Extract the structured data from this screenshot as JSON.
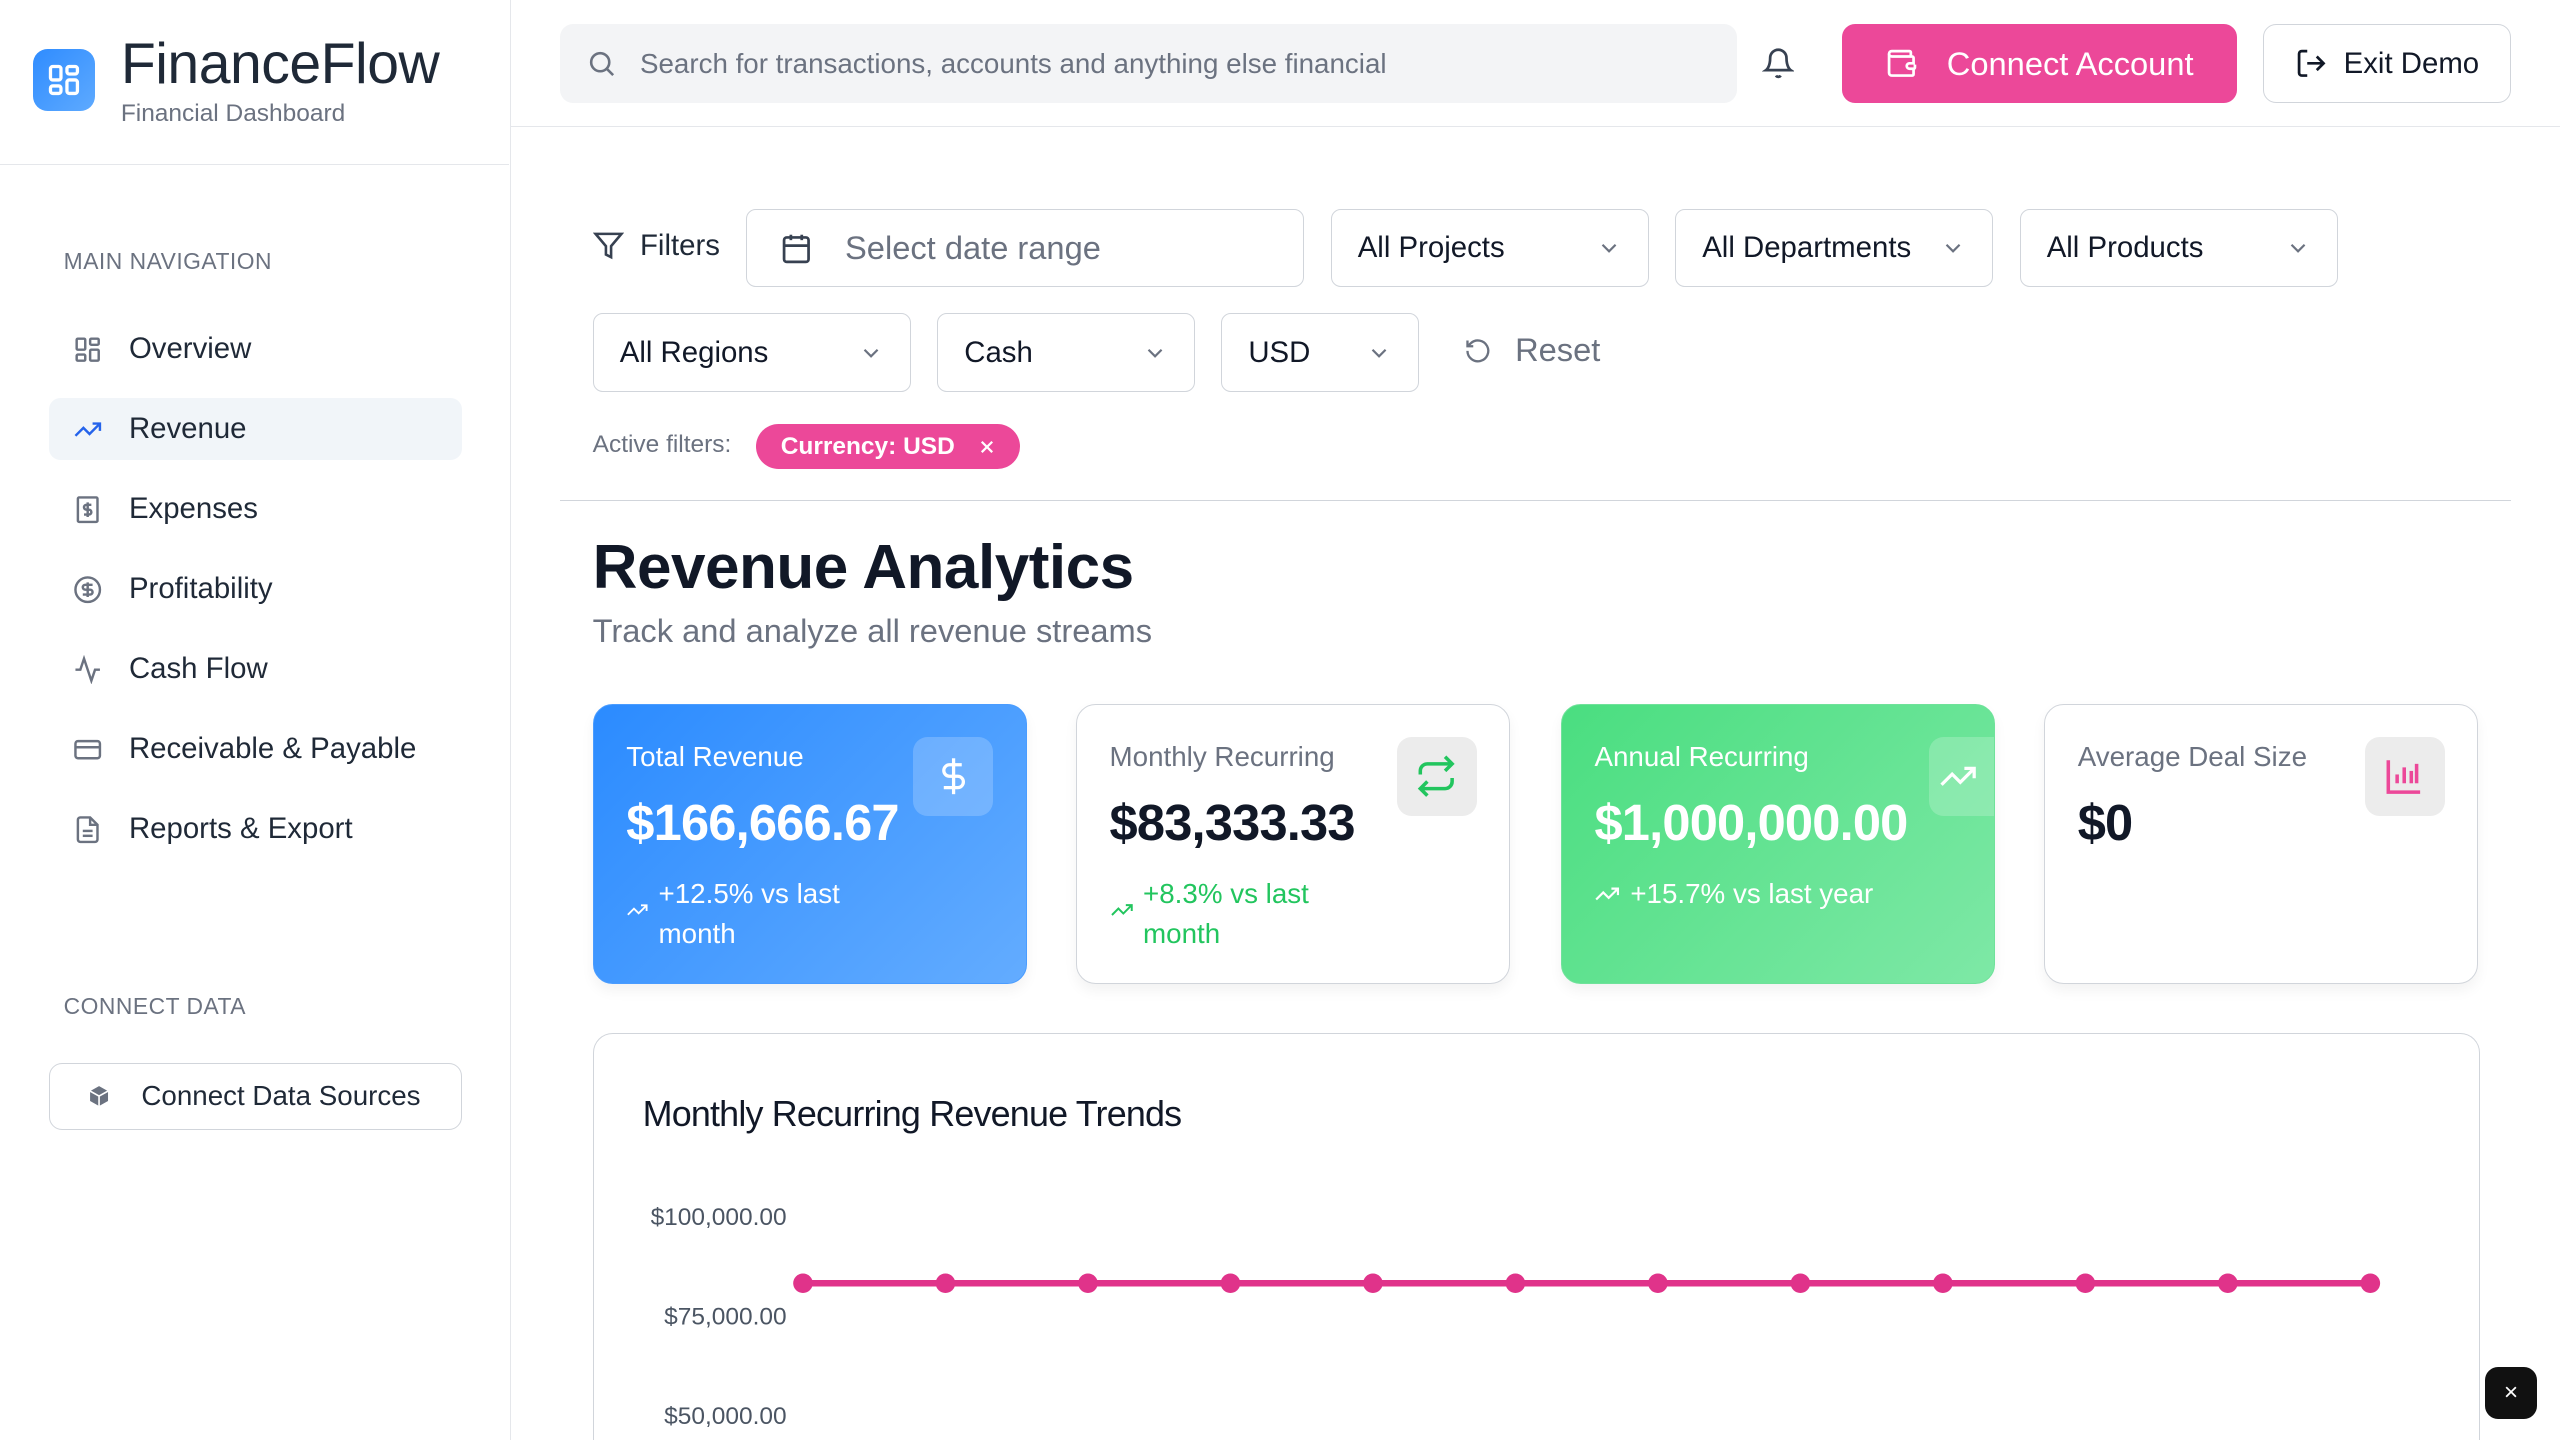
{
  "brand": {
    "name": "FinanceFlow",
    "subtitle": "Financial Dashboard"
  },
  "sidebar": {
    "main_nav_label": "MAIN NAVIGATION",
    "items": [
      {
        "label": "Overview",
        "icon": "layout-grid-icon"
      },
      {
        "label": "Revenue",
        "icon": "trending-up-icon",
        "active": true
      },
      {
        "label": "Expenses",
        "icon": "receipt-icon"
      },
      {
        "label": "Profitability",
        "icon": "circle-dollar-icon"
      },
      {
        "label": "Cash Flow",
        "icon": "activity-icon"
      },
      {
        "label": "Receivable & Payable",
        "icon": "credit-card-icon"
      },
      {
        "label": "Reports & Export",
        "icon": "file-text-icon"
      }
    ],
    "connect_label": "CONNECT DATA",
    "connect_button": "Connect Data Sources"
  },
  "topbar": {
    "search_placeholder": "Search for transactions, accounts and anything else financial",
    "connect_account": "Connect Account",
    "exit_demo": "Exit Demo"
  },
  "filters": {
    "label": "Filters",
    "date_placeholder": "Select date range",
    "projects": "All Projects",
    "departments": "All Departments",
    "products": "All Products",
    "regions": "All Regions",
    "account_type": "Cash",
    "currency": "USD",
    "reset": "Reset",
    "active_label": "Active filters:",
    "active_chip": "Currency: USD"
  },
  "page": {
    "title": "Revenue Analytics",
    "subtitle": "Track and analyze all revenue streams"
  },
  "kpis": [
    {
      "title": "Total Revenue",
      "value": "$166,666.67",
      "change": "+12.5% vs last month",
      "icon": "dollar-icon"
    },
    {
      "title": "Monthly Recurring",
      "value": "$83,333.33",
      "change": "+8.3% vs last month",
      "icon": "repeat-icon"
    },
    {
      "title": "Annual Recurring",
      "value": "$1,000,000.00",
      "change": "+15.7% vs last year",
      "icon": "trending-up-icon"
    },
    {
      "title": "Average Deal Size",
      "value": "$0",
      "icon": "bar-chart-icon"
    }
  ],
  "colors": {
    "accent": "#ec4899",
    "primary": "#2563eb",
    "success": "#22c55e"
  },
  "chart_data": {
    "type": "line",
    "title": "Monthly Recurring Revenue Trends",
    "y_ticks": [
      "$100,000.00",
      "$75,000.00",
      "$50,000.00"
    ],
    "y_tick_values": [
      100000,
      75000,
      50000
    ],
    "series": [
      {
        "color": "#e0338a",
        "values": [
          83333.33,
          83333.33,
          83333.33,
          83333.33,
          83333.33,
          83333.33,
          83333.33,
          83333.33,
          83333.33,
          83333.33,
          83333.33,
          83333.33
        ]
      }
    ],
    "grid": false
  },
  "floating": {
    "close": "×"
  }
}
